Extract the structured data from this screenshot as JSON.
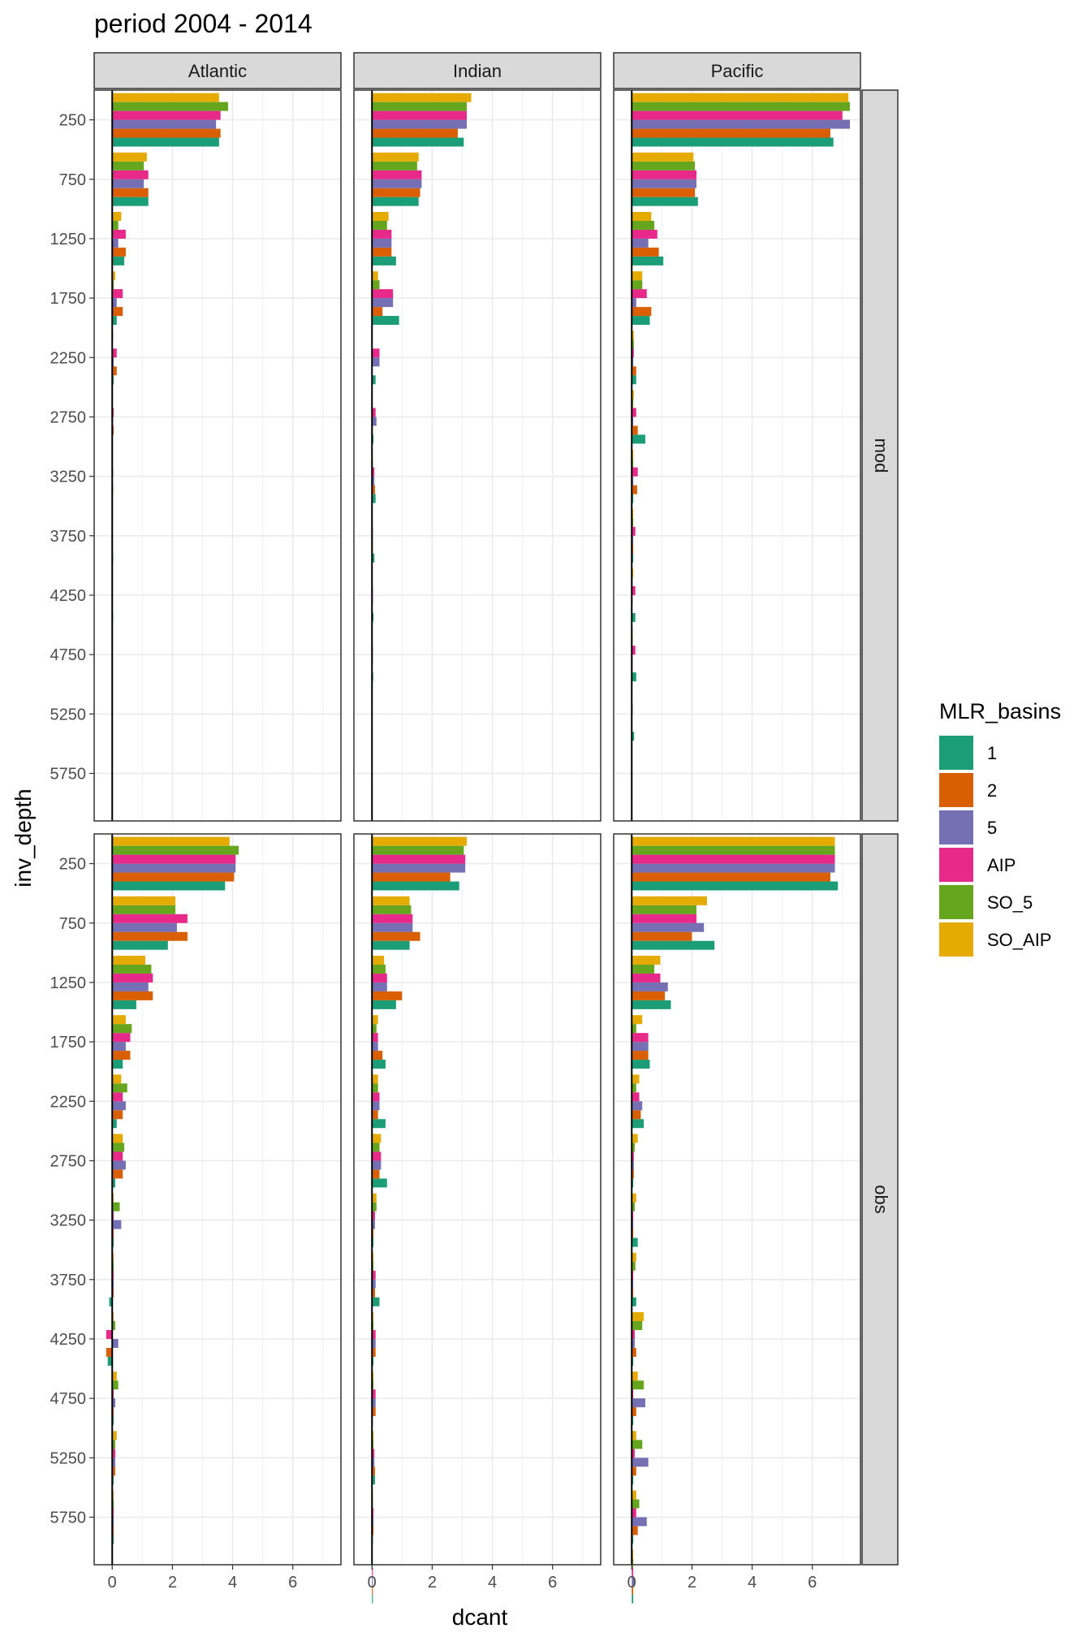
{
  "chart_data": {
    "type": "bar",
    "orientation": "horizontal",
    "title": "period 2004 - 2014",
    "xlabel": "dcant",
    "ylabel": "inv_depth",
    "xlim": [
      -0.6,
      7.6
    ],
    "x_ticks": [
      0,
      2,
      4,
      6
    ],
    "y_ticks": [
      250,
      750,
      1250,
      1750,
      2250,
      2750,
      3250,
      3750,
      4250,
      4750,
      5250,
      5750
    ],
    "ylim_reversed": [
      0,
      6150
    ],
    "grid": true,
    "facet_columns": [
      "Atlantic",
      "Indian",
      "Pacific"
    ],
    "facet_rows": [
      "mod",
      "obs"
    ],
    "legend": {
      "title": "MLR_basins",
      "position": "right",
      "entries": [
        "1",
        "2",
        "5",
        "AIP",
        "SO_5",
        "SO_AIP"
      ]
    },
    "series": [
      {
        "name": "1",
        "color": "#1B9E77"
      },
      {
        "name": "2",
        "color": "#D95F02"
      },
      {
        "name": "5",
        "color": "#7570B3"
      },
      {
        "name": "AIP",
        "color": "#E7298A"
      },
      {
        "name": "SO_5",
        "color": "#66A61E"
      },
      {
        "name": "SO_AIP",
        "color": "#E6AB02"
      }
    ],
    "panels": [
      {
        "basin": "Atlantic",
        "data_source": "mod",
        "values": [
          [
            3.55,
            3.6,
            3.45,
            3.6,
            3.85,
            3.55
          ],
          [
            1.2,
            1.2,
            1.05,
            1.2,
            1.05,
            1.15
          ],
          [
            0.4,
            0.45,
            0.2,
            0.45,
            0.2,
            0.3
          ],
          [
            0.15,
            0.35,
            0.15,
            0.35,
            0.05,
            0.1
          ],
          [
            0.05,
            0.15,
            0.05,
            0.15,
            0.02,
            0.03
          ],
          [
            0.02,
            0.05,
            0.03,
            0.05,
            0.01,
            0.02
          ],
          [
            0.02,
            0.03,
            0.02,
            0.03,
            0.01,
            0.01
          ],
          [
            0.03,
            0.02,
            0.02,
            0.02,
            0.01,
            0.01
          ],
          [
            0.03,
            0.02,
            0.02,
            0.02,
            0.01,
            0.01
          ],
          [
            0.02,
            0.01,
            0.01,
            0.01,
            0.01,
            0.01
          ],
          [
            0.01,
            0.01,
            0.01,
            0.01,
            0.01,
            0.01
          ],
          [
            0,
            0,
            0,
            0,
            0,
            0
          ]
        ]
      },
      {
        "basin": "Indian",
        "data_source": "mod",
        "values": [
          [
            3.05,
            2.85,
            3.15,
            3.15,
            3.15,
            3.3
          ],
          [
            1.55,
            1.6,
            1.65,
            1.65,
            1.5,
            1.55
          ],
          [
            0.8,
            0.65,
            0.65,
            0.65,
            0.5,
            0.55
          ],
          [
            0.9,
            0.35,
            0.7,
            0.7,
            0.25,
            0.2
          ],
          [
            0.12,
            0.02,
            0.25,
            0.25,
            0.02,
            0.02
          ],
          [
            0.05,
            0.03,
            0.15,
            0.12,
            0.02,
            0.02
          ],
          [
            0.12,
            0.1,
            0.08,
            0.08,
            0.03,
            0.02
          ],
          [
            0.08,
            0.03,
            0.03,
            0.03,
            0.02,
            0.01
          ],
          [
            0.05,
            0.02,
            0.03,
            0.03,
            0.02,
            0.01
          ],
          [
            0.04,
            0.02,
            0.03,
            0.03,
            0.01,
            0.01
          ],
          [
            0.02,
            0.01,
            0.01,
            0.01,
            0.01,
            0.01
          ],
          [
            0,
            0,
            0,
            0,
            0,
            0
          ]
        ]
      },
      {
        "basin": "Pacific",
        "data_source": "mod",
        "values": [
          [
            6.7,
            6.6,
            7.25,
            7.0,
            7.25,
            7.2
          ],
          [
            2.2,
            2.1,
            2.15,
            2.15,
            2.1,
            2.05
          ],
          [
            1.05,
            0.9,
            0.55,
            0.85,
            0.75,
            0.65
          ],
          [
            0.6,
            0.65,
            0.15,
            0.5,
            0.35,
            0.35
          ],
          [
            0.15,
            0.15,
            0.05,
            0.07,
            0.07,
            0.07
          ],
          [
            0.45,
            0.2,
            0.05,
            0.15,
            0.05,
            0.07
          ],
          [
            0.05,
            0.18,
            0.05,
            0.2,
            0.05,
            0.05
          ],
          [
            0.05,
            0.05,
            0.05,
            0.12,
            0.05,
            0.05
          ],
          [
            0.12,
            0.02,
            0.03,
            0.12,
            0.03,
            0.05
          ],
          [
            0.15,
            0.03,
            0.03,
            0.12,
            0.03,
            0.03
          ],
          [
            0.08,
            0.02,
            0.02,
            0.03,
            0.02,
            0.02
          ],
          [
            0,
            0,
            0,
            0,
            0,
            0
          ]
        ]
      },
      {
        "basin": "Atlantic",
        "data_source": "obs",
        "values": [
          [
            3.75,
            4.05,
            4.1,
            4.1,
            4.2,
            3.9
          ],
          [
            1.85,
            2.5,
            2.15,
            2.5,
            2.1,
            2.1
          ],
          [
            0.8,
            1.35,
            1.2,
            1.35,
            1.3,
            1.1
          ],
          [
            0.35,
            0.6,
            0.45,
            0.6,
            0.65,
            0.45
          ],
          [
            0.15,
            0.35,
            0.45,
            0.35,
            0.5,
            0.3
          ],
          [
            0.1,
            0.35,
            0.45,
            0.35,
            0.4,
            0.35
          ],
          [
            0.05,
            0.05,
            0.3,
            0.05,
            0.25,
            0.05
          ],
          [
            -0.1,
            0.05,
            0.05,
            0.05,
            0.05,
            0.05
          ],
          [
            -0.15,
            -0.2,
            0.2,
            -0.2,
            0.1,
            0.05
          ],
          [
            0.05,
            0.05,
            0.1,
            0.05,
            0.2,
            0.15
          ],
          [
            0.05,
            0.1,
            0.1,
            0.1,
            0.1,
            0.15
          ],
          [
            0.05,
            0.05,
            0.05,
            0.05,
            0.05,
            0.05
          ]
        ]
      },
      {
        "basin": "Indian",
        "data_source": "obs",
        "values": [
          [
            2.9,
            2.6,
            3.1,
            3.1,
            3.05,
            3.15
          ],
          [
            1.25,
            1.6,
            1.35,
            1.35,
            1.3,
            1.25
          ],
          [
            0.8,
            1.0,
            0.5,
            0.5,
            0.45,
            0.4
          ],
          [
            0.45,
            0.35,
            0.2,
            0.2,
            0.15,
            0.2
          ],
          [
            0.45,
            0.2,
            0.25,
            0.25,
            0.2,
            0.2
          ],
          [
            0.5,
            0.25,
            0.3,
            0.3,
            0.25,
            0.3
          ],
          [
            0.05,
            0.05,
            0.1,
            0.1,
            0.15,
            0.15
          ],
          [
            0.25,
            0.1,
            0.12,
            0.12,
            0.05,
            0.05
          ],
          [
            0.05,
            0.12,
            0.12,
            0.12,
            0.05,
            0.05
          ],
          [
            0.03,
            0.12,
            0.12,
            0.12,
            0.05,
            0.05
          ],
          [
            0.1,
            0.1,
            0.08,
            0.08,
            0.05,
            0.05
          ],
          [
            0.03,
            0.05,
            0.05,
            0.05,
            0.03,
            0.03
          ],
          [
            0.03,
            0.03,
            0.03,
            0.03,
            0.02,
            0.02
          ]
        ]
      },
      {
        "basin": "Pacific",
        "data_source": "obs",
        "values": [
          [
            6.85,
            6.6,
            6.75,
            6.75,
            6.75,
            6.75
          ],
          [
            2.75,
            2.0,
            2.4,
            2.15,
            2.15,
            2.5
          ],
          [
            1.3,
            1.1,
            1.2,
            0.95,
            0.75,
            0.95
          ],
          [
            0.6,
            0.55,
            0.55,
            0.55,
            0.15,
            0.35
          ],
          [
            0.4,
            0.3,
            0.35,
            0.25,
            0.15,
            0.25
          ],
          [
            0.05,
            0.07,
            0.07,
            0.07,
            0.1,
            0.2
          ],
          [
            0.2,
            0.05,
            0.05,
            0.05,
            0.1,
            0.15
          ],
          [
            0.15,
            0.05,
            0.05,
            0.05,
            0.12,
            0.15
          ],
          [
            0.05,
            0.15,
            0.1,
            0.1,
            0.35,
            0.4
          ],
          [
            0.05,
            0.15,
            0.45,
            0.05,
            0.4,
            0.2
          ],
          [
            0.05,
            0.15,
            0.55,
            0.1,
            0.35,
            0.15
          ],
          [
            0.05,
            0.2,
            0.5,
            0.15,
            0.25,
            0.15
          ],
          [
            0.05,
            0.05,
            0.08,
            0.05,
            0.05,
            0.05
          ]
        ]
      }
    ]
  }
}
